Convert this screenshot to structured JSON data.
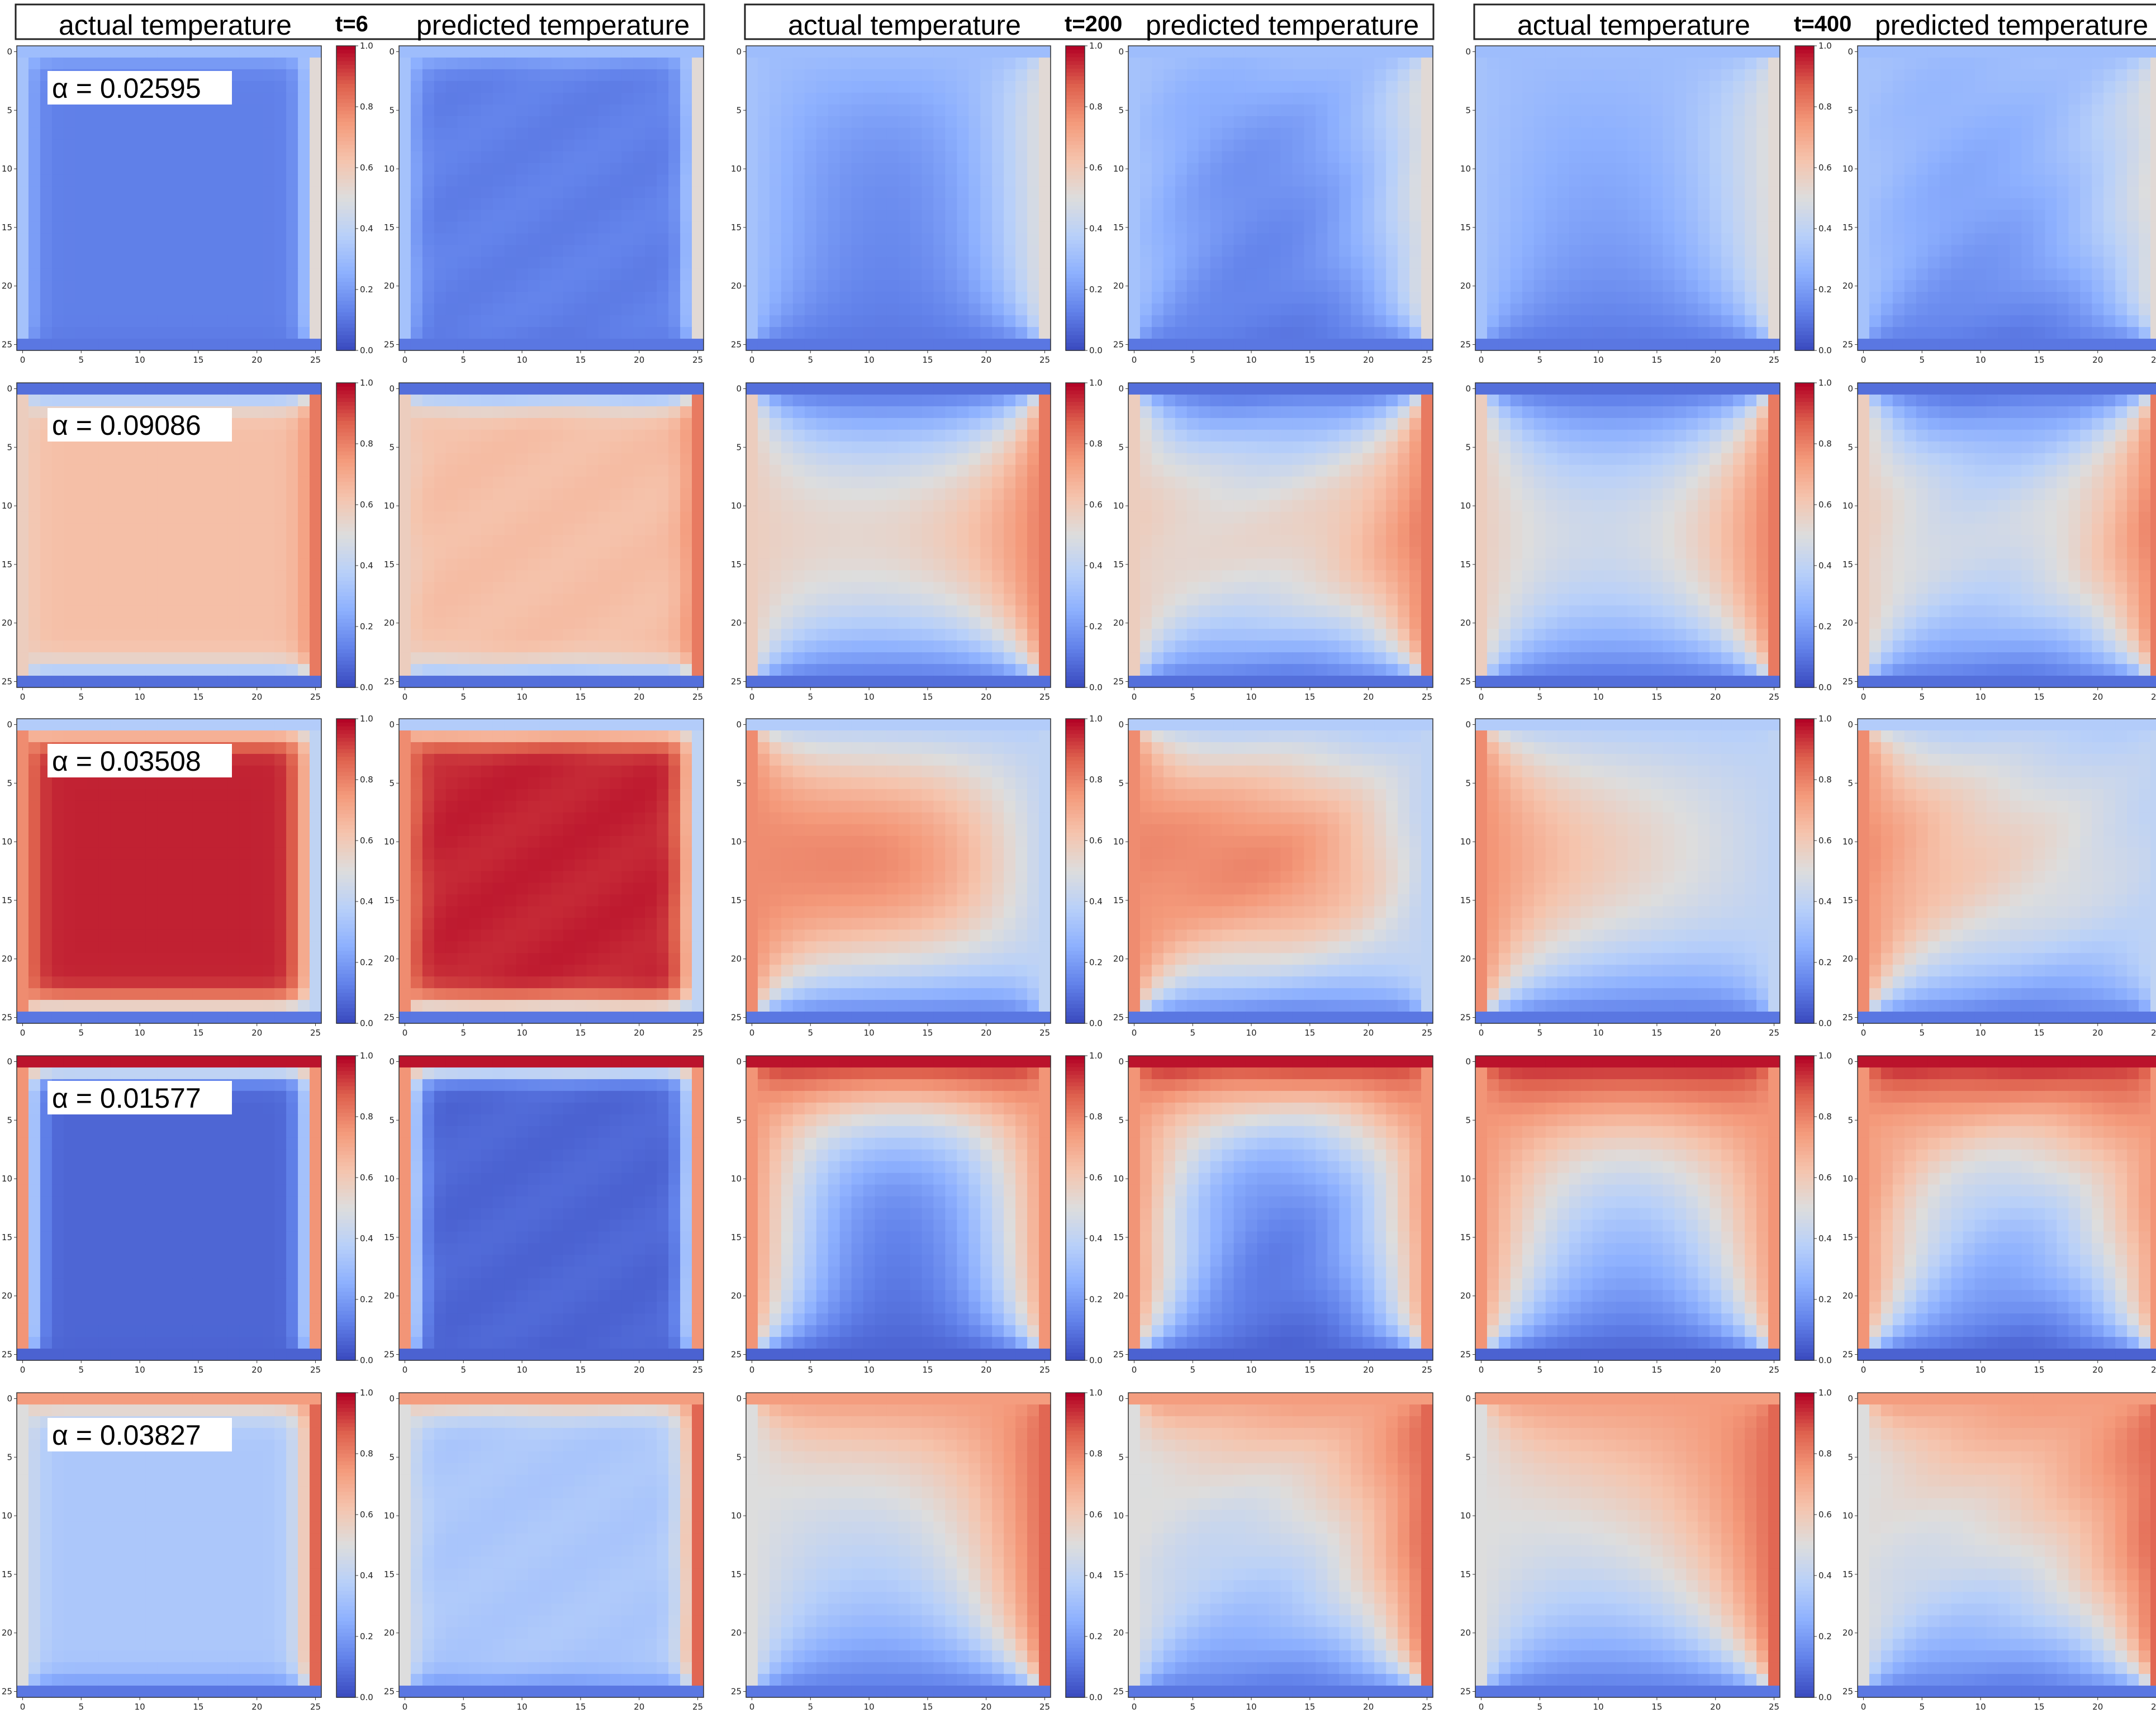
{
  "chart_data": {
    "type": "heatmap",
    "colormap": "coolwarm",
    "grid_size": 26,
    "column_headers": {
      "left": "actual temperature",
      "right": "predicted temperature"
    },
    "time_labels": [
      "t=6",
      "t=200",
      "t=400"
    ],
    "x_ticks": [
      "0",
      "5",
      "10",
      "15",
      "20",
      "25"
    ],
    "y_ticks": [
      "0",
      "5",
      "10",
      "15",
      "20",
      "25"
    ],
    "colorbar_ticks": [
      "0.0",
      "0.2",
      "0.4",
      "0.6",
      "0.8",
      "1.0"
    ],
    "clim": [
      0,
      1
    ],
    "rows": [
      {
        "alpha_label": "α = 0.02595",
        "boundaries": {
          "top": 0.3,
          "bottom": 0.1,
          "left": 0.32,
          "right": 0.52
        },
        "initial": 0.12
      },
      {
        "alpha_label": "α = 0.09086",
        "boundaries": {
          "top": 0.08,
          "bottom": 0.08,
          "left": 0.58,
          "right": 0.82
        },
        "initial": 0.64
      },
      {
        "alpha_label": "α = 0.03508",
        "boundaries": {
          "top": 0.36,
          "bottom": 0.1,
          "left": 0.78,
          "right": 0.4
        },
        "initial": 0.96
      },
      {
        "alpha_label": "α = 0.01577",
        "boundaries": {
          "top": 0.98,
          "bottom": 0.05,
          "left": 0.76,
          "right": 0.76
        },
        "initial": 0.06
      },
      {
        "alpha_label": "α = 0.03827",
        "boundaries": {
          "top": 0.74,
          "bottom": 0.1,
          "left": 0.5,
          "right": 0.86
        },
        "initial": 0.34
      }
    ]
  }
}
